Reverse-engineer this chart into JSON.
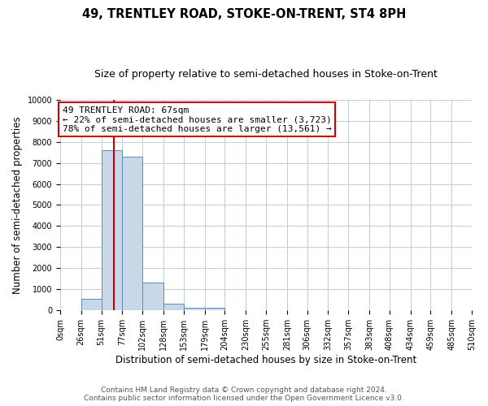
{
  "title": "49, TRENTLEY ROAD, STOKE-ON-TRENT, ST4 8PH",
  "subtitle": "Size of property relative to semi-detached houses in Stoke-on-Trent",
  "xlabel": "Distribution of semi-detached houses by size in Stoke-on-Trent",
  "ylabel": "Number of semi-detached properties",
  "bin_edges": [
    0,
    26,
    51,
    77,
    102,
    128,
    153,
    179,
    204,
    230,
    255,
    281,
    306,
    332,
    357,
    383,
    408,
    434,
    459,
    485,
    510
  ],
  "bar_heights": [
    0,
    560,
    7600,
    7280,
    1330,
    320,
    135,
    120,
    0,
    0,
    0,
    0,
    0,
    0,
    0,
    0,
    0,
    0,
    0,
    0
  ],
  "bar_color": "#c8d8e8",
  "bar_edgecolor": "#5b8db8",
  "property_value": 67,
  "vline_color": "#cc0000",
  "annotation_box_edgecolor": "#cc0000",
  "annotation_title": "49 TRENTLEY ROAD: 67sqm",
  "annotation_line1": "← 22% of semi-detached houses are smaller (3,723)",
  "annotation_line2": "78% of semi-detached houses are larger (13,561) →",
  "ylim": [
    0,
    10000
  ],
  "tick_labels": [
    "0sqm",
    "26sqm",
    "51sqm",
    "77sqm",
    "102sqm",
    "128sqm",
    "153sqm",
    "179sqm",
    "204sqm",
    "230sqm",
    "255sqm",
    "281sqm",
    "306sqm",
    "332sqm",
    "357sqm",
    "383sqm",
    "408sqm",
    "434sqm",
    "459sqm",
    "485sqm",
    "510sqm"
  ],
  "footer_line1": "Contains HM Land Registry data © Crown copyright and database right 2024.",
  "footer_line2": "Contains public sector information licensed under the Open Government Licence v3.0.",
  "background_color": "#ffffff",
  "grid_color": "#c0ccd8",
  "title_fontsize": 10.5,
  "subtitle_fontsize": 9,
  "axis_label_fontsize": 8.5,
  "tick_fontsize": 7,
  "annotation_fontsize": 8,
  "footer_fontsize": 6.5
}
